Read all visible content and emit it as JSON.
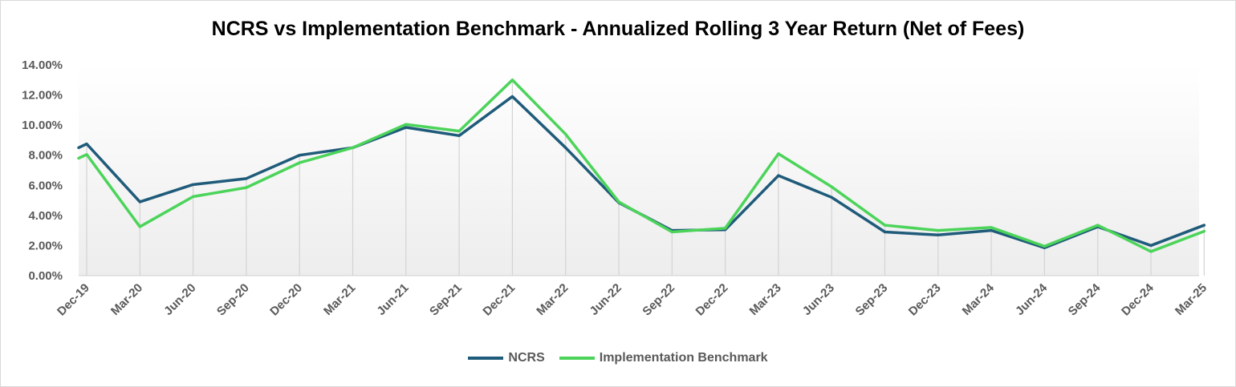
{
  "chart_data": {
    "type": "line",
    "title": "NCRS vs Implementation Benchmark - Annualized Rolling 3 Year Return (Net of Fees)",
    "xlabel": "",
    "ylabel": "",
    "ylim": [
      0,
      14
    ],
    "yticks": [
      "0.00%",
      "2.00%",
      "4.00%",
      "6.00%",
      "8.00%",
      "10.00%",
      "12.00%",
      "14.00%"
    ],
    "categories": [
      "Dec-19",
      "Mar-20",
      "Jun-20",
      "Sep-20",
      "Dec-20",
      "Mar-21",
      "Jun-21",
      "Sep-21",
      "Dec-21",
      "Mar-22",
      "Jun-22",
      "Sep-22",
      "Dec-22",
      "Mar-23",
      "Jun-23",
      "Sep-23",
      "Dec-23",
      "Mar-24",
      "Jun-24",
      "Sep-24",
      "Dec-24",
      "Mar-25"
    ],
    "series": [
      {
        "name": "NCRS",
        "color": "#1f5b7a",
        "lead_value": 8.5,
        "values": [
          8.75,
          4.9,
          6.05,
          6.45,
          8.0,
          8.5,
          9.85,
          9.3,
          11.9,
          8.5,
          4.85,
          3.0,
          3.05,
          6.65,
          5.2,
          2.9,
          2.7,
          3.0,
          1.85,
          3.25,
          2.0,
          3.35
        ]
      },
      {
        "name": "Implementation Benchmark",
        "color": "#4cd45a",
        "lead_value": 7.8,
        "values": [
          8.05,
          3.25,
          5.25,
          5.85,
          7.5,
          8.5,
          10.05,
          9.6,
          13.0,
          9.4,
          4.9,
          2.9,
          3.15,
          8.1,
          5.9,
          3.35,
          3.0,
          3.2,
          1.95,
          3.35,
          1.6,
          2.95
        ]
      }
    ],
    "grid": "vertical drop lines",
    "legend_position": "bottom"
  }
}
